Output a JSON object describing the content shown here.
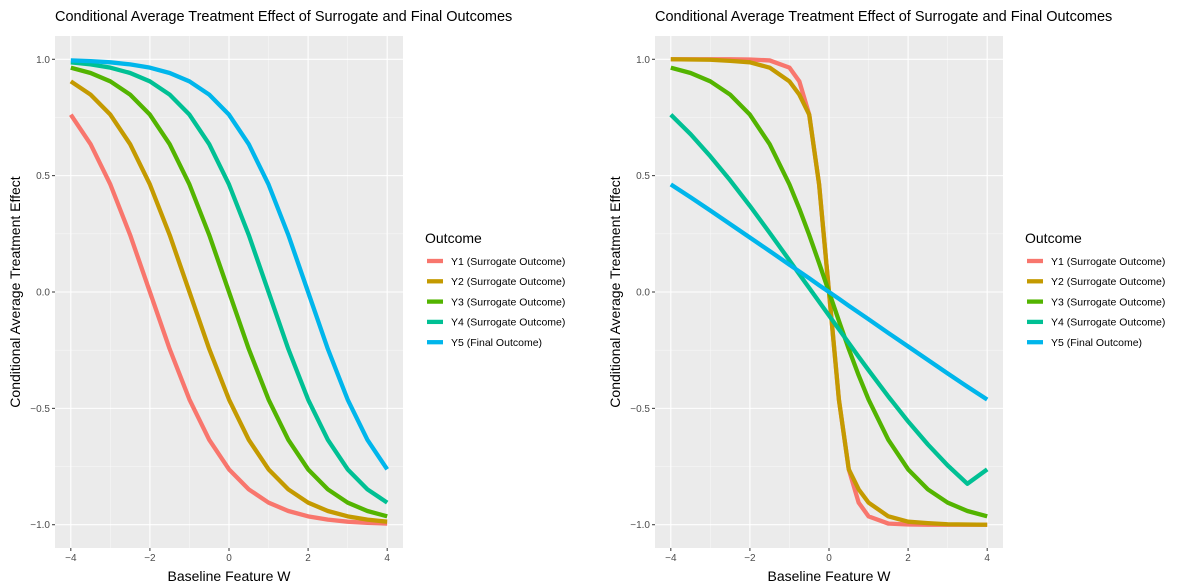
{
  "chart_data": [
    {
      "type": "line",
      "title": "Conditional Average Treatment Effect of Surrogate and Final Outcomes",
      "xlabel": "Baseline Feature W",
      "ylabel": "Conditional Average Treatment Effect",
      "xlim": [
        -4.4,
        4.4
      ],
      "ylim": [
        -1.1,
        1.1
      ],
      "xticks": [
        -4,
        -2,
        0,
        2,
        4
      ],
      "xtick_labels": [
        "−4",
        "−2",
        "0",
        "2",
        "4"
      ],
      "yticks": [
        -1.0,
        -0.5,
        0.0,
        0.5,
        1.0
      ],
      "ytick_labels": [
        "−1.0",
        "−0.5",
        "0.0",
        "0.5",
        "1.0"
      ],
      "grid": true,
      "legend_title": "Outcome",
      "legend_position": "right",
      "x": [
        -4,
        -3.5,
        -3,
        -2.5,
        -2,
        -1.5,
        -1,
        -0.5,
        0,
        0.5,
        1,
        1.5,
        2,
        2.5,
        3,
        3.5,
        4
      ],
      "series": [
        {
          "name": "Y1 (Surrogate Outcome)",
          "color": "#F8766D",
          "values": [
            0.762,
            0.635,
            0.462,
            0.245,
            0.0,
            -0.245,
            -0.462,
            -0.635,
            -0.762,
            -0.848,
            -0.905,
            -0.941,
            -0.964,
            -0.978,
            -0.987,
            -0.992,
            -0.995
          ]
        },
        {
          "name": "Y2 (Surrogate Outcome)",
          "color": "#C49A00",
          "values": [
            0.905,
            0.848,
            0.762,
            0.635,
            0.462,
            0.245,
            0.0,
            -0.245,
            -0.462,
            -0.635,
            -0.762,
            -0.848,
            -0.905,
            -0.941,
            -0.964,
            -0.978,
            -0.987
          ]
        },
        {
          "name": "Y3 (Surrogate Outcome)",
          "color": "#53B400",
          "values": [
            0.964,
            0.941,
            0.905,
            0.848,
            0.762,
            0.635,
            0.462,
            0.245,
            0.0,
            -0.245,
            -0.462,
            -0.635,
            -0.762,
            -0.848,
            -0.905,
            -0.941,
            -0.964
          ]
        },
        {
          "name": "Y4 (Surrogate Outcome)",
          "color": "#00C094",
          "values": [
            0.987,
            0.978,
            0.964,
            0.941,
            0.905,
            0.848,
            0.762,
            0.635,
            0.462,
            0.245,
            0.0,
            -0.245,
            -0.462,
            -0.635,
            -0.762,
            -0.848,
            -0.905
          ]
        },
        {
          "name": "Y5 (Final Outcome)",
          "color": "#00B6EB",
          "values": [
            0.995,
            0.992,
            0.987,
            0.978,
            0.964,
            0.941,
            0.905,
            0.848,
            0.762,
            0.635,
            0.462,
            0.245,
            0.0,
            -0.245,
            -0.462,
            -0.635,
            -0.762
          ]
        }
      ]
    },
    {
      "type": "line",
      "title": "Conditional Average Treatment Effect of Surrogate and Final Outcomes",
      "xlabel": "Baseline Feature W",
      "ylabel": "Conditional Average Treatment Effect",
      "xlim": [
        -4.4,
        4.4
      ],
      "ylim": [
        -1.1,
        1.1
      ],
      "xticks": [
        -4,
        -2,
        0,
        2,
        4
      ],
      "xtick_labels": [
        "−4",
        "−2",
        "0",
        "2",
        "4"
      ],
      "yticks": [
        -1.0,
        -0.5,
        0.0,
        0.5,
        1.0
      ],
      "ytick_labels": [
        "−1.0",
        "−0.5",
        "0.0",
        "0.5",
        "1.0"
      ],
      "grid": true,
      "legend_title": "Outcome",
      "legend_position": "right",
      "x": [
        -4,
        -3.5,
        -3,
        -2.5,
        -2,
        -1.5,
        -1,
        -0.75,
        -0.5,
        -0.25,
        0,
        0.25,
        0.5,
        0.75,
        1,
        1.5,
        2,
        2.5,
        3,
        3.5,
        4
      ],
      "series": [
        {
          "name": "Y1 (Surrogate Outcome)",
          "color": "#F8766D",
          "values": [
            1.0,
            1.0,
            1.0,
            1.0,
            0.999,
            0.995,
            0.964,
            0.905,
            0.762,
            0.462,
            0.0,
            -0.462,
            -0.762,
            -0.905,
            -0.964,
            -0.995,
            -0.999,
            -1.0,
            -1.0,
            -1.0,
            -1.0
          ]
        },
        {
          "name": "Y2 (Surrogate Outcome)",
          "color": "#C49A00",
          "values": [
            1.0,
            0.999,
            0.998,
            0.993,
            0.987,
            0.964,
            0.905,
            0.848,
            0.762,
            0.462,
            0.0,
            -0.462,
            -0.762,
            -0.848,
            -0.905,
            -0.964,
            -0.987,
            -0.993,
            -0.998,
            -0.999,
            -1.0
          ]
        },
        {
          "name": "Y3 (Surrogate Outcome)",
          "color": "#53B400",
          "values": [
            0.964,
            0.941,
            0.905,
            0.848,
            0.762,
            0.635,
            0.462,
            0.358,
            0.245,
            0.124,
            0.0,
            -0.124,
            -0.245,
            -0.358,
            -0.462,
            -0.635,
            -0.762,
            -0.848,
            -0.905,
            -0.941,
            -0.964
          ]
        },
        {
          "name": "Y4 (Surrogate Outcome)",
          "color": "#00C094",
          "values": [
            0.762,
            0.678,
            0.583,
            0.48,
            0.37,
            0.254,
            0.136,
            0.076,
            0.017,
            -0.042,
            -0.101,
            -0.16,
            -0.219,
            -0.278,
            -0.336,
            -0.449,
            -0.556,
            -0.655,
            -0.745,
            -0.824,
            -0.762
          ]
        },
        {
          "name": "Y5 (Final Outcome)",
          "color": "#00B6EB",
          "values": [
            0.462,
            0.407,
            0.35,
            0.292,
            0.234,
            0.176,
            0.117,
            0.088,
            0.059,
            0.029,
            0.0,
            -0.029,
            -0.059,
            -0.088,
            -0.117,
            -0.176,
            -0.234,
            -0.292,
            -0.35,
            -0.407,
            -0.462
          ]
        }
      ]
    }
  ]
}
